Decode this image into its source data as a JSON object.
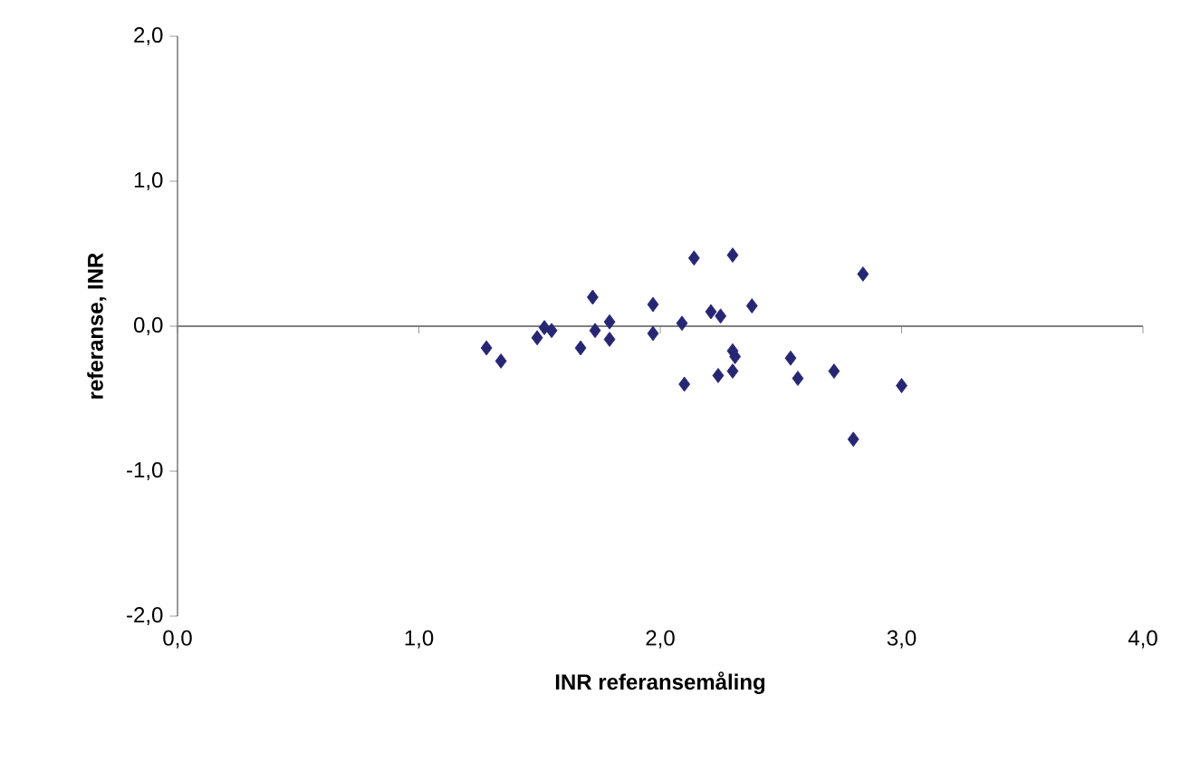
{
  "chart_data": {
    "type": "scatter",
    "xlabel": "INR referansemåling",
    "ylabel": "referanse, INR",
    "xlim": [
      0,
      4
    ],
    "ylim": [
      -2,
      2
    ],
    "xticks": [
      {
        "value": 0,
        "label": "0,0"
      },
      {
        "value": 1,
        "label": "1,0"
      },
      {
        "value": 2,
        "label": "2,0"
      },
      {
        "value": 3,
        "label": "3,0"
      },
      {
        "value": 4,
        "label": "4,0"
      }
    ],
    "yticks": [
      {
        "value": -2,
        "label": "-2,0"
      },
      {
        "value": -1,
        "label": "-1,0"
      },
      {
        "value": 0,
        "label": "0,0"
      },
      {
        "value": 1,
        "label": "1,0"
      },
      {
        "value": 2,
        "label": "2,0"
      }
    ],
    "marker": "diamond",
    "grid": false,
    "ref_lines": [
      {
        "axis": "y",
        "value": 0,
        "color": "#808080"
      }
    ],
    "series": [
      {
        "color": "#262673",
        "x": [
          1.28,
          1.34,
          1.49,
          1.52,
          1.55,
          1.67,
          1.72,
          1.73,
          1.79,
          1.79,
          1.97,
          1.97,
          2.09,
          2.1,
          2.14,
          2.21,
          2.25,
          2.24,
          2.3,
          2.3,
          2.31,
          2.3,
          2.38,
          2.54,
          2.57,
          2.72,
          2.8,
          2.84,
          3.0
        ],
        "values": [
          -0.15,
          -0.24,
          -0.08,
          -0.01,
          -0.03,
          -0.15,
          0.2,
          -0.03,
          0.03,
          -0.09,
          0.15,
          -0.05,
          0.02,
          -0.4,
          0.47,
          0.1,
          0.07,
          -0.34,
          0.49,
          -0.17,
          -0.21,
          -0.31,
          0.14,
          -0.22,
          -0.36,
          -0.31,
          -0.78,
          0.36,
          -0.41
        ]
      }
    ]
  }
}
